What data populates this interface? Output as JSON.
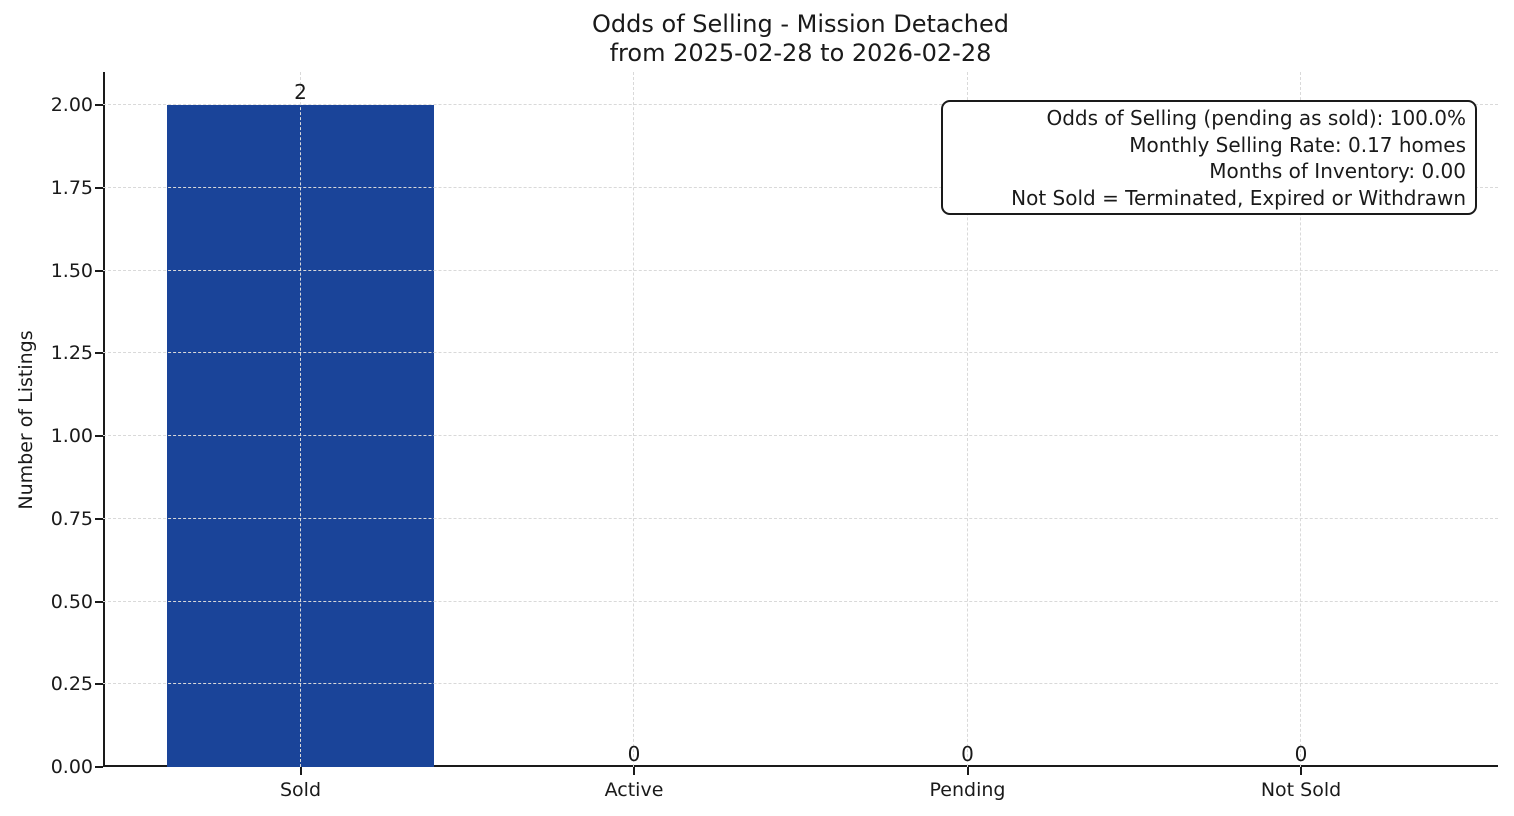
{
  "title": {
    "line1": "Odds of Selling - Mission Detached",
    "line2": "from 2025-02-28 to 2026-02-28"
  },
  "chart_data": {
    "type": "bar",
    "title": "Odds of Selling - Mission Detached\nfrom 2025-02-28 to 2026-02-28",
    "categories": [
      "Sold",
      "Active",
      "Pending",
      "Not Sold"
    ],
    "values": [
      2,
      0,
      0,
      0
    ],
    "bar_labels": [
      "2",
      "0",
      "0",
      "0"
    ],
    "xlabel": "",
    "ylabel": "Number of Listings",
    "ylim": [
      0,
      2.1
    ],
    "ytick_labels": [
      "0.00",
      "0.25",
      "0.50",
      "0.75",
      "1.00",
      "1.25",
      "1.50",
      "1.75",
      "2.00"
    ],
    "grid": true,
    "grid_style": "dashed",
    "legend_position": "none",
    "spines": [
      "left",
      "bottom"
    ],
    "annotation_lines": [
      "Odds of Selling (pending as sold): 100.0%",
      "Monthly Selling Rate: 0.17 homes",
      "Months of Inventory: 0.00",
      "Not Sold = Terminated, Expired or Withdrawn"
    ],
    "colors": {
      "bar": "#1a4499",
      "grid": "#d9d9d9",
      "axis": "#1a1a1a",
      "text": "#1a1a1a",
      "background": "#ffffff"
    }
  }
}
